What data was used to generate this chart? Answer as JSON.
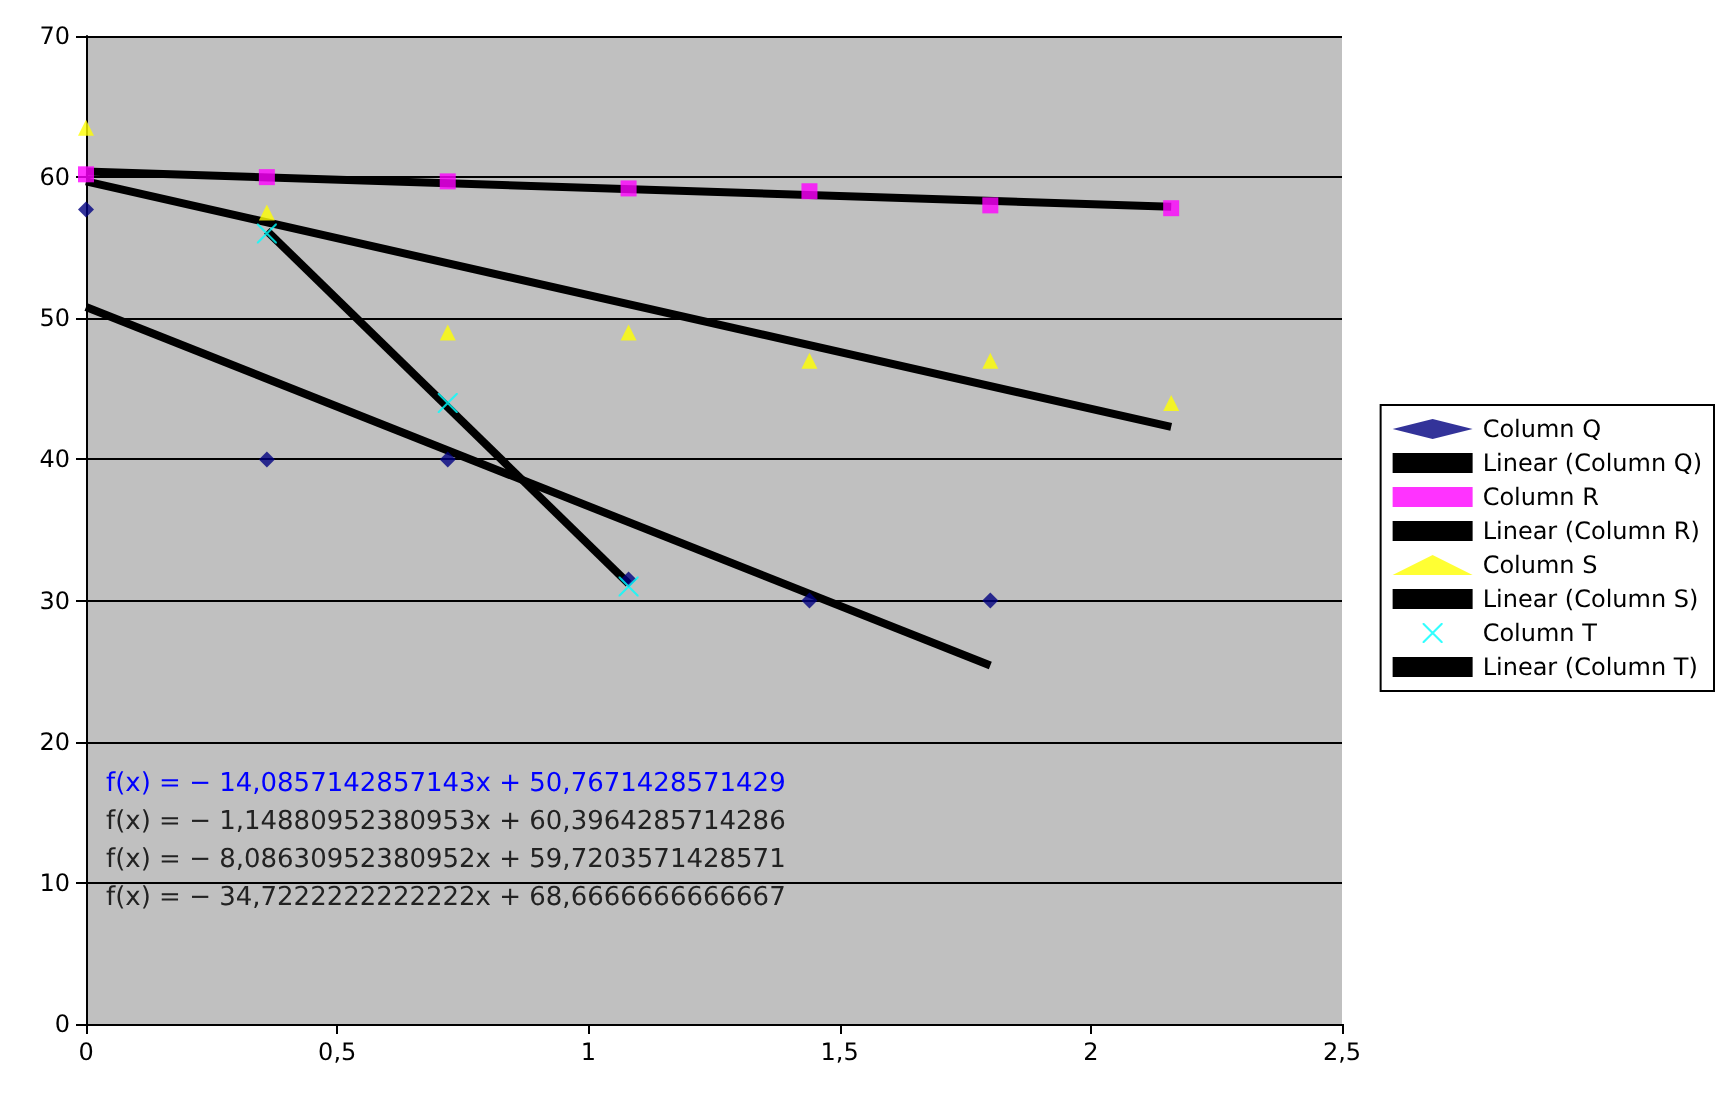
{
  "chart_data": {
    "type": "scatter",
    "xlim": [
      0,
      2.5
    ],
    "xticks": [
      0,
      {
        "value": 0.5,
        "label": "0,5"
      },
      1,
      {
        "value": 1.5,
        "label": "1,5"
      },
      2,
      {
        "value": 2.5,
        "label": "2,5"
      }
    ],
    "ylim": [
      0,
      70
    ],
    "yticks": [
      0,
      10,
      20,
      30,
      40,
      50,
      60,
      70
    ],
    "grid": "y",
    "legend": "right",
    "series": [
      {
        "name": "Column Q",
        "marker": "diamond",
        "color": "#000080",
        "x": [
          0,
          0.36,
          0.72,
          1.08,
          1.44,
          1.8
        ],
        "values": [
          57.7,
          40,
          40,
          31.5,
          30,
          30
        ]
      },
      {
        "name": "Linear (Column Q)",
        "type": "line",
        "marker": "none",
        "color": "#000000",
        "x": [
          0,
          1.8
        ],
        "values": [
          50.8,
          25.4
        ]
      },
      {
        "name": "Column R",
        "marker": "square",
        "color": "#ff00ff",
        "x": [
          0,
          0.36,
          0.72,
          1.08,
          1.44,
          1.8,
          2.16
        ],
        "values": [
          60.2,
          60,
          59.7,
          59.2,
          59,
          58,
          57.8
        ]
      },
      {
        "name": "Linear (Column R)",
        "type": "line",
        "marker": "none",
        "color": "#000000",
        "x": [
          0,
          2.16
        ],
        "values": [
          60.4,
          57.9
        ]
      },
      {
        "name": "Column S",
        "marker": "triangle",
        "color": "#ffff00",
        "x": [
          0,
          0.36,
          0.72,
          1.08,
          1.44,
          1.8,
          2.16
        ],
        "values": [
          63.5,
          57.5,
          49,
          49,
          47,
          47,
          44
        ]
      },
      {
        "name": "Linear (Column S)",
        "type": "line",
        "marker": "none",
        "color": "#000000",
        "x": [
          0,
          2.16
        ],
        "values": [
          59.7,
          42.3
        ]
      },
      {
        "name": "Column T",
        "marker": "cross",
        "color": "#00ffff",
        "x": [
          0.36,
          0.72,
          1.08
        ],
        "values": [
          56,
          44,
          31
        ]
      },
      {
        "name": "Linear (Column T)",
        "type": "line",
        "marker": "none",
        "color": "#000000",
        "x": [
          0.36,
          1.08
        ],
        "values": [
          56.2,
          31.2
        ]
      }
    ],
    "annotations": [
      "f(x) = − 14,0857142857143x + 50,7671428571429",
      "f(x) = − 1,14880952380953x + 60,3964285714286",
      "f(x) = − 8,08630952380952x + 59,7203571428571",
      "f(x) = − 34,7222222222222x + 68,6666666666667"
    ]
  }
}
